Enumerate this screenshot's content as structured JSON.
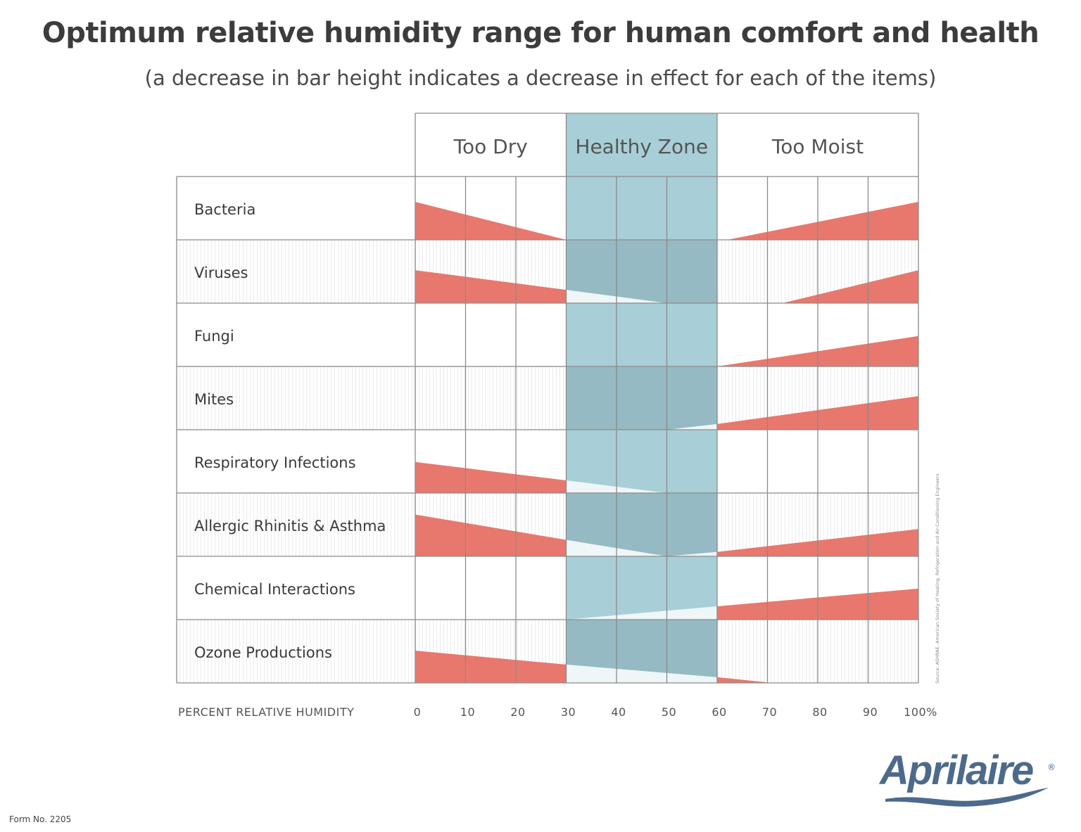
{
  "title": "Optimum relative humidity range for human comfort and health",
  "subtitle": "(a decrease in bar height indicates a decrease in effect for each of the items)",
  "form_number": "Form No. 2205",
  "logo_text": "Aprilaire",
  "logo_mark": "®",
  "source_note": "Source: ASHRAE, American Society of Heating, Refrigeration and Air-Conditioning Engineers",
  "colors": {
    "effect": "#e8786d",
    "healthy_zone": "#a8cfd8",
    "healthy_zone_dark": "#8fb3bc",
    "grid": "#8a8a8a",
    "logo": "#4d6a8c"
  },
  "chart_data": {
    "type": "area",
    "title": "Optimum relative humidity range for human comfort and health",
    "subtitle": "(a decrease in bar height indicates a decrease in effect for each of the items)",
    "xlabel": "PERCENT RELATIVE HUMIDITY",
    "xlim": [
      0,
      100
    ],
    "x_ticks": [
      "0",
      "10",
      "20",
      "30",
      "40",
      "50",
      "60",
      "70",
      "80",
      "90",
      "100%"
    ],
    "zones": [
      {
        "label": "Too Dry",
        "range": [
          0,
          30
        ]
      },
      {
        "label": "Healthy Zone",
        "range": [
          30,
          60
        ]
      },
      {
        "label": "Too Moist",
        "range": [
          60,
          100
        ]
      }
    ],
    "grid": true,
    "effect_scale": "relative bar height 0-1",
    "series": [
      {
        "name": "Bacteria",
        "segments": [
          [
            [
              0,
              0.6
            ],
            [
              30,
              0
            ]
          ],
          [
            [
              62,
              0
            ],
            [
              100,
              0.6
            ]
          ]
        ]
      },
      {
        "name": "Viruses",
        "segments": [
          [
            [
              0,
              0.52
            ],
            [
              30,
              0.21
            ],
            [
              50,
              0
            ]
          ],
          [
            [
              73,
              0
            ],
            [
              100,
              0.52
            ]
          ]
        ]
      },
      {
        "name": "Fungi",
        "segments": [
          [
            [
              60,
              0
            ],
            [
              100,
              0.48
            ]
          ]
        ]
      },
      {
        "name": "Mites",
        "segments": [
          [
            [
              50,
              0
            ],
            [
              60,
              0.09
            ],
            [
              100,
              0.53
            ]
          ]
        ]
      },
      {
        "name": "Respiratory Infections",
        "segments": [
          [
            [
              0,
              0.49
            ],
            [
              30,
              0.2
            ],
            [
              50,
              0
            ]
          ]
        ]
      },
      {
        "name": "Allergic Rhinitis & Asthma",
        "segments": [
          [
            [
              0,
              0.66
            ],
            [
              30,
              0.26
            ],
            [
              50,
              0
            ],
            [
              60,
              0.07
            ],
            [
              100,
              0.43
            ]
          ]
        ]
      },
      {
        "name": "Chemical Interactions",
        "segments": [
          [
            [
              30,
              0
            ],
            [
              60,
              0.21
            ],
            [
              100,
              0.49
            ]
          ]
        ]
      },
      {
        "name": "Ozone Productions",
        "segments": [
          [
            [
              0,
              0.51
            ],
            [
              30,
              0.29
            ],
            [
              60,
              0.09
            ],
            [
              71,
              0
            ]
          ]
        ]
      }
    ]
  }
}
